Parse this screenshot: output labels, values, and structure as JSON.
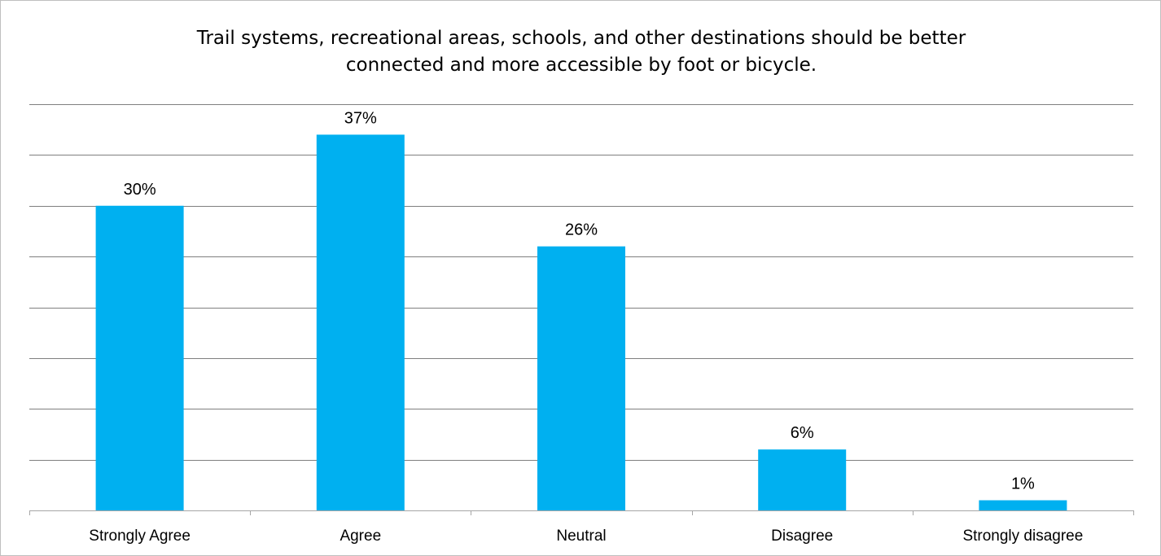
{
  "chart_data": {
    "type": "bar",
    "title_lines": [
      "Trail systems, recreational areas, schools, and other destinations should be better",
      "connected and more accessible by foot or bicycle."
    ],
    "categories": [
      "Strongly Agree",
      "Agree",
      "Neutral",
      "Disagree",
      "Strongly disagree"
    ],
    "values": [
      30,
      37,
      26,
      6,
      1
    ],
    "data_labels": [
      "30%",
      "37%",
      "26%",
      "6%",
      "1%"
    ],
    "ylim": [
      0,
      40
    ],
    "gridline_step": 5,
    "grid": true,
    "y_tick_labels_shown": false,
    "legend": "none",
    "colors": {
      "bar": "#00B0F0",
      "gridline": "#7f7f7f",
      "axis": "#a6a6a6",
      "border": "#bfbfbf"
    }
  }
}
